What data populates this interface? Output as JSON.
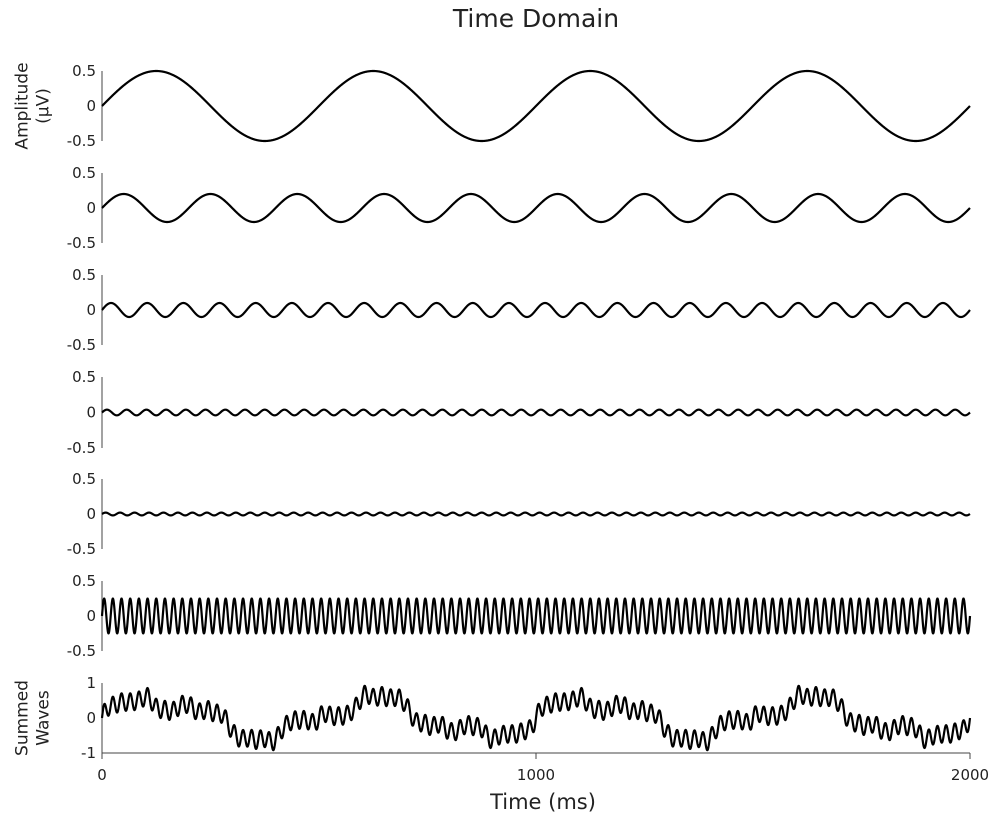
{
  "chart_data": {
    "type": "line",
    "title": "Time Domain",
    "xlabel": "Time (ms)",
    "xlim": [
      0,
      2000
    ],
    "xticks": [
      0,
      1000,
      2000
    ],
    "xtick_labels": [
      "0",
      "1000",
      "2000"
    ],
    "subplots": [
      {
        "ylabel_lines": [
          "Amplitude",
          "(µV)"
        ],
        "ylim": [
          -0.5,
          0.5
        ],
        "yticks": [
          0.5,
          0,
          -0.5
        ],
        "ytick_labels": [
          "0.5",
          "0",
          "-0.5"
        ],
        "series": [
          {
            "amplitude": 0.5,
            "frequency_hz": 2
          }
        ]
      },
      {
        "ylabel_lines": [],
        "ylim": [
          -0.5,
          0.5
        ],
        "yticks": [
          0.5,
          0,
          -0.5
        ],
        "ytick_labels": [
          "0.5",
          "0",
          "-0.5"
        ],
        "series": [
          {
            "amplitude": 0.2,
            "frequency_hz": 5
          }
        ]
      },
      {
        "ylabel_lines": [],
        "ylim": [
          -0.5,
          0.5
        ],
        "yticks": [
          0.5,
          0,
          -0.5
        ],
        "ytick_labels": [
          "0.5",
          "0",
          "-0.5"
        ],
        "series": [
          {
            "amplitude": 0.1,
            "frequency_hz": 12
          }
        ]
      },
      {
        "ylabel_lines": [],
        "ylim": [
          -0.5,
          0.5
        ],
        "yticks": [
          0.5,
          0,
          -0.5
        ],
        "ytick_labels": [
          "0.5",
          "0",
          "-0.5"
        ],
        "series": [
          {
            "amplitude": 0.04,
            "frequency_hz": 22
          }
        ]
      },
      {
        "ylabel_lines": [],
        "ylim": [
          -0.5,
          0.5
        ],
        "yticks": [
          0.5,
          0,
          -0.5
        ],
        "ytick_labels": [
          "0.5",
          "0",
          "-0.5"
        ],
        "series": [
          {
            "amplitude": 0.02,
            "frequency_hz": 30
          }
        ]
      },
      {
        "ylabel_lines": [],
        "ylim": [
          -0.5,
          0.5
        ],
        "yticks": [
          0.5,
          0,
          -0.5
        ],
        "ytick_labels": [
          "0.5",
          "0",
          "-0.5"
        ],
        "series": [
          {
            "amplitude": 0.25,
            "frequency_hz": 50
          }
        ]
      },
      {
        "ylabel_lines": [
          "Summed",
          "Waves"
        ],
        "ylim": [
          -1,
          1
        ],
        "yticks": [
          1,
          0,
          -1
        ],
        "ytick_labels": [
          "1",
          "0",
          "-1"
        ],
        "series": [
          {
            "sum_of_rows": [
              0,
              1,
              2,
              3,
              4,
              5
            ]
          }
        ]
      }
    ],
    "grid": false,
    "legend": "none",
    "line_color": "#000000"
  }
}
